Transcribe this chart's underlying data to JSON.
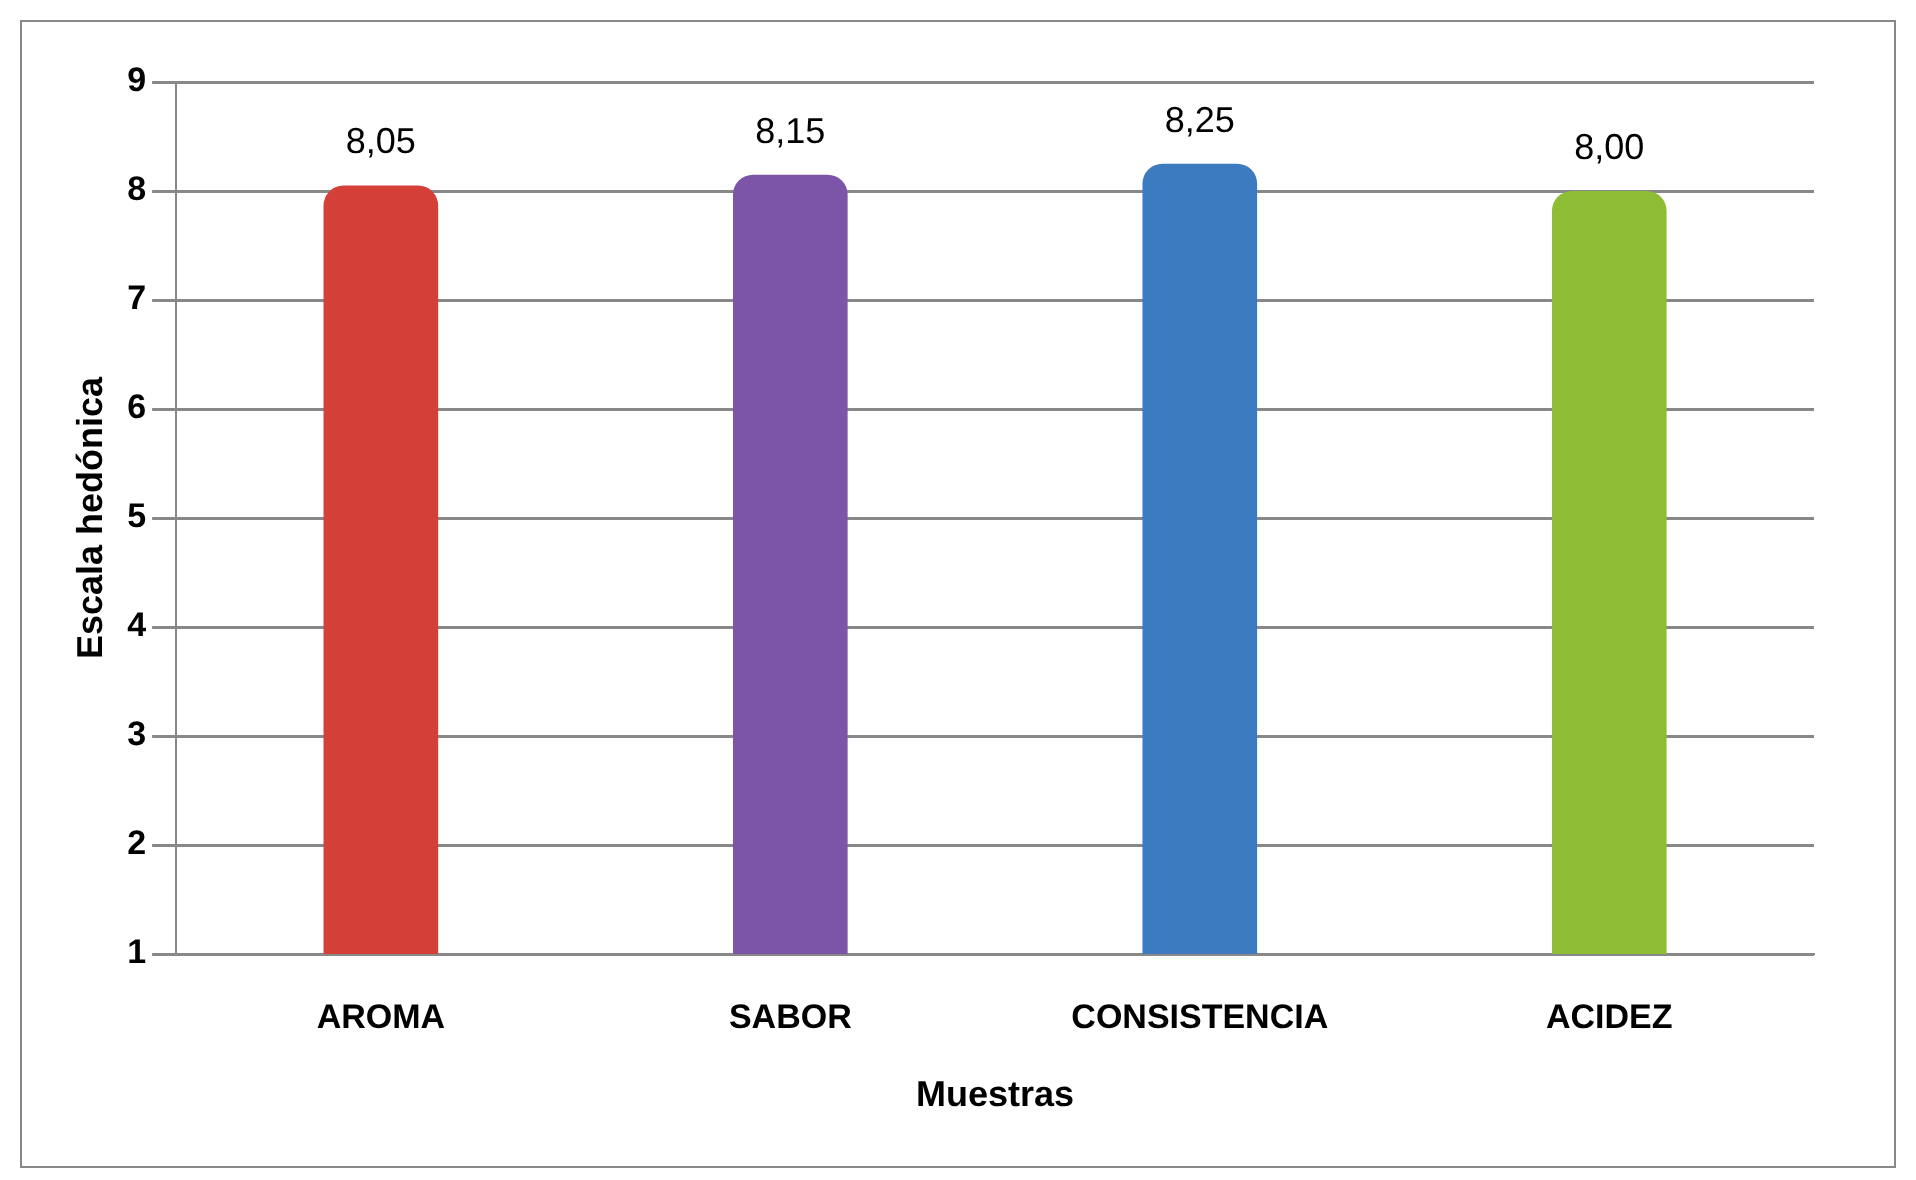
{
  "chart_data": {
    "type": "bar",
    "xlabel": "Muestras",
    "ylabel": "Escala hedónica",
    "categories": [
      "AROMA",
      "SABOR",
      "CONSISTENCIA",
      "ACIDEZ"
    ],
    "values": [
      8.05,
      8.15,
      8.25,
      8.0
    ],
    "colors": [
      "#d43f38",
      "#7d55a8",
      "#3d7bc0",
      "#8cbd35"
    ],
    "value_labels": [
      "8,05",
      "8,15",
      "8,25",
      "8,00"
    ],
    "ylim": [
      1,
      9
    ],
    "yticks": [
      1,
      2,
      3,
      4,
      5,
      6,
      7,
      8,
      9
    ],
    "grid": "y",
    "legend": false
  }
}
